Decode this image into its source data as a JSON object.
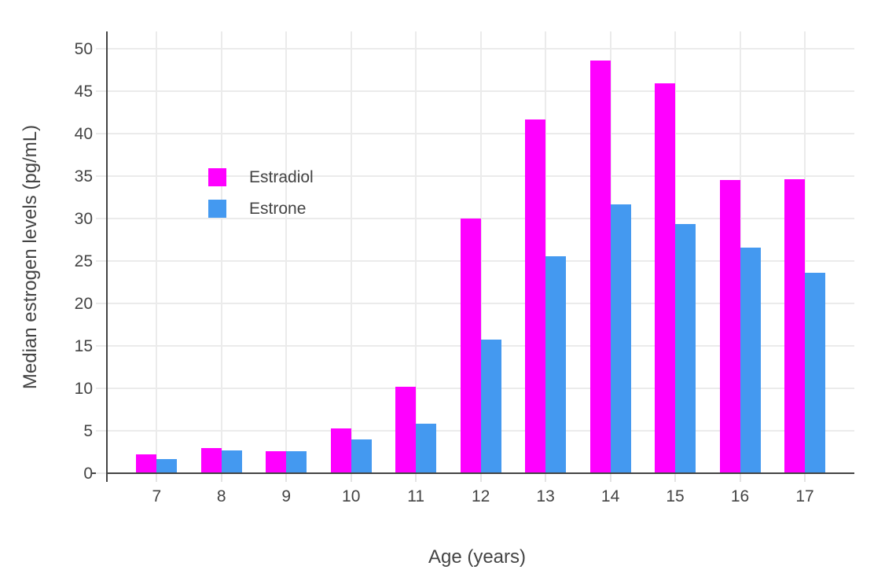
{
  "chart_data": {
    "type": "bar",
    "title": "",
    "xlabel": "Age (years)",
    "ylabel": "Median estrogen levels (pg/mL)",
    "categories": [
      "7",
      "8",
      "9",
      "10",
      "11",
      "12",
      "13",
      "14",
      "15",
      "16",
      "17"
    ],
    "series": [
      {
        "name": "Estradiol",
        "color": "#ff00ff",
        "values": [
          2.2,
          3.0,
          2.6,
          5.3,
          10.2,
          30.0,
          41.6,
          48.6,
          45.9,
          34.5,
          34.6
        ]
      },
      {
        "name": "Estrone",
        "color": "#4499f0",
        "values": [
          1.7,
          2.7,
          2.6,
          4.0,
          5.8,
          15.7,
          25.5,
          31.6,
          29.3,
          26.6,
          23.6
        ]
      }
    ],
    "ylim": [
      0,
      52
    ],
    "ytick_step": 5,
    "yticks": [
      "0",
      "5",
      "10",
      "15",
      "20",
      "25",
      "30",
      "35",
      "40",
      "45",
      "50"
    ],
    "grid": true,
    "legend_position": "inside-top-left"
  },
  "colors": {
    "background": "#ffffff",
    "axis_line": "#444444",
    "grid_line": "#ebebeb",
    "text": "#444444"
  }
}
